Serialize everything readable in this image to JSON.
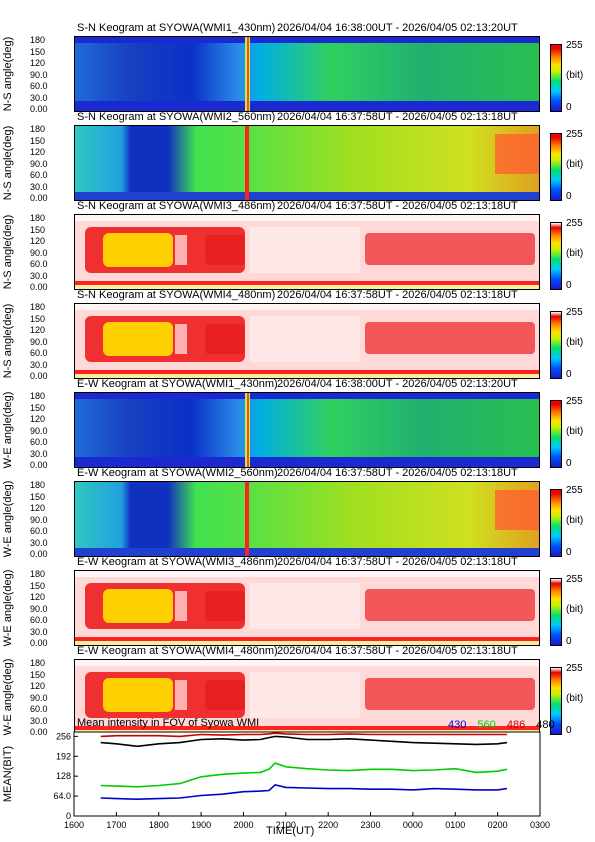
{
  "keograms": [
    {
      "title": "S-N Keogram at SYOWA(WMI1_430nm)",
      "time": "2026/04/04 16:38:00UT - 2026/04/05 02:13:20UT",
      "ylabel": "N-S angle(deg)",
      "palette": "blue"
    },
    {
      "title": "S-N Keogram at SYOWA(WMI2_560nm)",
      "time": "2026/04/04 16:37:58UT - 2026/04/05 02:13:18UT",
      "ylabel": "N-S angle(deg)",
      "palette": "green"
    },
    {
      "title": "S-N Keogram at SYOWA(WMI3_486nm)",
      "time": "2026/04/04 16:37:58UT - 2026/04/05 02:13:18UT",
      "ylabel": "N-S angle(deg)",
      "palette": "red"
    },
    {
      "title": "S-N Keogram at SYOWA(WMI4_480nm)",
      "time": "2026/04/04 16:37:58UT - 2026/04/05 02:13:18UT",
      "ylabel": "N-S angle(deg)",
      "palette": "red"
    },
    {
      "title": "E-W Keogram at SYOWA(WMI1_430nm)",
      "time": "2026/04/04 16:38:00UT - 2026/04/05 02:13:20UT",
      "ylabel": "W-E angle(deg)",
      "palette": "blue"
    },
    {
      "title": "E-W Keogram at SYOWA(WMI2_560nm)",
      "time": "2026/04/04 16:37:58UT - 2026/04/05 02:13:18UT",
      "ylabel": "W-E angle(deg)",
      "palette": "green"
    },
    {
      "title": "E-W Keogram at SYOWA(WMI3_486nm)",
      "time": "2026/04/04 16:37:58UT - 2026/04/05 02:13:18UT",
      "ylabel": "W-E angle(deg)",
      "palette": "red"
    },
    {
      "title": "E-W Keogram at SYOWA(WMI4_480nm)",
      "time": "2026/04/04 16:37:58UT - 2026/04/05 02:13:18UT",
      "ylabel": "W-E angle(deg)",
      "palette": "red"
    }
  ],
  "keogram_yticks": [
    "0.00",
    "30.0",
    "60.0",
    "90.0",
    "120",
    "150",
    "180"
  ],
  "colorbar": {
    "max": "255",
    "unit": "(bit)",
    "min": "0"
  },
  "chart_data": {
    "type": "line",
    "title": "Mean intensity in FOV of Syowa WMI",
    "xlabel": "TIME(UT)",
    "ylabel": "MEAN(BIT)",
    "x_ticks": [
      "1600",
      "1700",
      "1800",
      "1900",
      "2000",
      "2100",
      "2200",
      "2300",
      "0000",
      "0100",
      "0200",
      "0300"
    ],
    "y_ticks": [
      "0",
      "64.0",
      "128",
      "192",
      "256"
    ],
    "ylim": [
      0,
      270
    ],
    "xlim_hours": [
      16.0,
      27.0
    ],
    "x_hours": [
      16.63,
      17.0,
      17.5,
      18.0,
      18.5,
      19.0,
      19.5,
      20.0,
      20.4,
      20.6,
      20.75,
      21.0,
      21.5,
      22.0,
      22.5,
      23.0,
      23.5,
      24.0,
      24.5,
      25.0,
      25.5,
      26.0,
      26.22
    ],
    "series": [
      {
        "name": "430",
        "color": "#0000cc",
        "values": [
          58,
          56,
          54,
          56,
          58,
          66,
          70,
          78,
          80,
          82,
          100,
          92,
          90,
          88,
          88,
          86,
          86,
          84,
          88,
          86,
          84,
          84,
          88
        ]
      },
      {
        "name": "560",
        "color": "#00cc00",
        "values": [
          98,
          96,
          94,
          98,
          104,
          126,
          134,
          138,
          140,
          150,
          170,
          158,
          152,
          148,
          146,
          150,
          150,
          146,
          148,
          152,
          140,
          144,
          150
        ]
      },
      {
        "name": "486",
        "color": "#cc0000",
        "values": [
          256,
          258,
          258,
          258,
          256,
          262,
          260,
          262,
          262,
          264,
          266,
          264,
          262,
          262,
          264,
          262,
          262,
          262,
          262,
          262,
          262,
          262,
          262
        ]
      },
      {
        "name": "480",
        "color": "#000000",
        "values": [
          236,
          232,
          224,
          232,
          236,
          246,
          248,
          244,
          246,
          252,
          256,
          254,
          246,
          246,
          248,
          244,
          240,
          236,
          234,
          232,
          230,
          232,
          236
        ]
      }
    ]
  }
}
